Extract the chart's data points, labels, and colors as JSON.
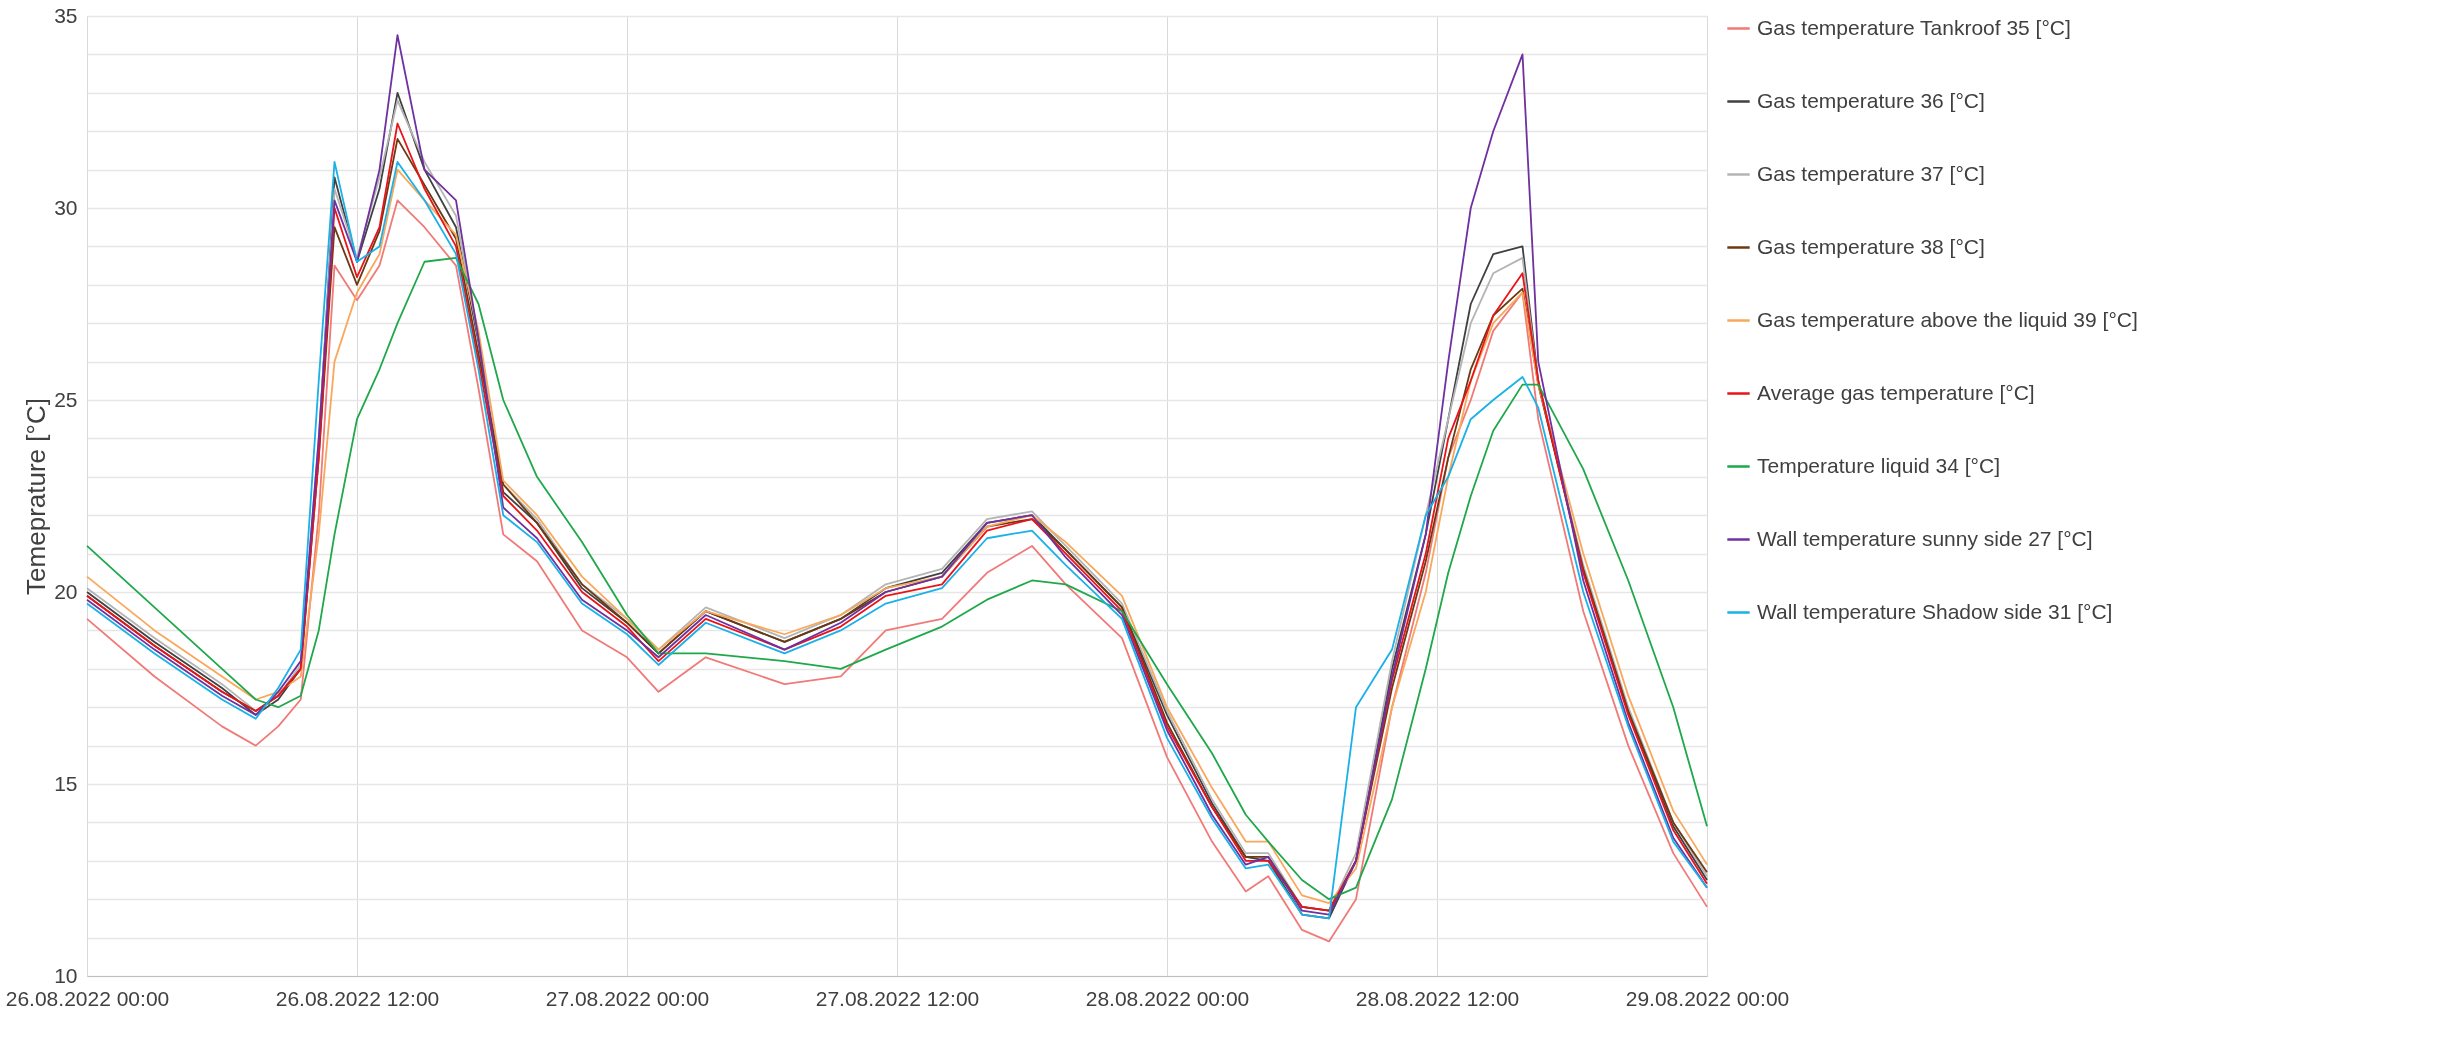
{
  "chart_data": {
    "type": "line",
    "ylabel": "Temeprature [°C]",
    "legend": "right",
    "grid": true,
    "line_style": "solid",
    "marker": "none",
    "x": [
      "2022-08-26T00:00",
      "2022-08-26T03:00",
      "2022-08-26T06:00",
      "2022-08-26T07:30",
      "2022-08-26T08:30",
      "2022-08-26T09:30",
      "2022-08-26T10:18",
      "2022-08-26T11:00",
      "2022-08-26T12:00",
      "2022-08-26T13:00",
      "2022-08-26T13:48",
      "2022-08-26T15:00",
      "2022-08-26T16:24",
      "2022-08-26T17:24",
      "2022-08-26T18:30",
      "2022-08-26T20:00",
      "2022-08-26T22:00",
      "2022-08-27T00:00",
      "2022-08-27T01:24",
      "2022-08-27T03:30",
      "2022-08-27T07:00",
      "2022-08-27T09:30",
      "2022-08-27T11:30",
      "2022-08-27T14:00",
      "2022-08-27T16:00",
      "2022-08-27T18:00",
      "2022-08-27T19:30",
      "2022-08-27T22:00",
      "2022-08-28T00:00",
      "2022-08-28T02:00",
      "2022-08-28T03:30",
      "2022-08-28T04:30",
      "2022-08-28T06:00",
      "2022-08-28T07:12",
      "2022-08-28T08:24",
      "2022-08-28T10:00",
      "2022-08-28T11:30",
      "2022-08-28T12:30",
      "2022-08-28T13:30",
      "2022-08-28T14:30",
      "2022-08-28T15:48",
      "2022-08-28T16:30",
      "2022-08-28T18:30",
      "2022-08-28T20:30",
      "2022-08-28T22:30",
      "2022-08-29T00:00"
    ],
    "xlim": [
      "2022-08-26T00:00",
      "2022-08-29T00:00"
    ],
    "xticks": [
      {
        "value": "2022-08-26T00:00",
        "label": "26.08.2022 00:00"
      },
      {
        "value": "2022-08-26T12:00",
        "label": "26.08.2022 12:00"
      },
      {
        "value": "2022-08-27T00:00",
        "label": "27.08.2022 00:00"
      },
      {
        "value": "2022-08-27T12:00",
        "label": "27.08.2022 12:00"
      },
      {
        "value": "2022-08-28T00:00",
        "label": "28.08.2022 00:00"
      },
      {
        "value": "2022-08-28T12:00",
        "label": "28.08.2022 12:00"
      },
      {
        "value": "2022-08-29T00:00",
        "label": "29.08.2022 00:00"
      }
    ],
    "ylim": [
      10,
      35
    ],
    "yticks": [
      10,
      {
        "value": 11,
        "label": null
      },
      {
        "value": 12,
        "label": null
      },
      {
        "value": 13,
        "label": null
      },
      {
        "value": 14,
        "label": null
      },
      15,
      {
        "value": 16,
        "label": null
      },
      {
        "value": 17,
        "label": null
      },
      {
        "value": 18,
        "label": null
      },
      {
        "value": 19,
        "label": null
      },
      20,
      {
        "value": 21,
        "label": null
      },
      {
        "value": 22,
        "label": null
      },
      {
        "value": 23,
        "label": null
      },
      {
        "value": 24,
        "label": null
      },
      25,
      {
        "value": 26,
        "label": null
      },
      {
        "value": 27,
        "label": null
      },
      {
        "value": 28,
        "label": null
      },
      {
        "value": 29,
        "label": null
      },
      30,
      {
        "value": 31,
        "label": null
      },
      {
        "value": 32,
        "label": null
      },
      {
        "value": 33,
        "label": null
      },
      {
        "value": 34,
        "label": null
      },
      35
    ],
    "series": [
      {
        "name": "Gas temperature Tankroof 35 [°C]",
        "color": "#f07a78",
        "values": [
          19.3,
          17.8,
          16.5,
          16.0,
          16.5,
          17.2,
          22.0,
          28.5,
          27.6,
          28.5,
          30.2,
          29.5,
          28.5,
          25.3,
          21.5,
          20.8,
          19.0,
          18.3,
          17.4,
          18.3,
          17.6,
          17.8,
          19.0,
          19.3,
          20.5,
          21.2,
          20.2,
          18.8,
          15.7,
          13.5,
          12.2,
          12.6,
          11.2,
          10.9,
          12.0,
          17.0,
          20.5,
          23.5,
          25.0,
          26.8,
          27.8,
          24.5,
          19.5,
          16.0,
          13.2,
          11.8
        ]
      },
      {
        "name": "Gas temperature 36 [°C]",
        "color": "#404040",
        "values": [
          20.0,
          18.7,
          17.5,
          16.8,
          17.2,
          18.0,
          23.8,
          30.8,
          28.6,
          30.5,
          33.0,
          31.0,
          29.5,
          26.5,
          22.6,
          21.8,
          20.1,
          19.2,
          18.4,
          19.5,
          18.7,
          19.3,
          20.1,
          20.5,
          21.8,
          22.0,
          21.1,
          19.6,
          16.8,
          14.5,
          13.1,
          13.0,
          11.6,
          11.5,
          13.0,
          18.0,
          21.5,
          24.5,
          27.5,
          28.8,
          29.0,
          25.5,
          20.6,
          16.9,
          13.9,
          12.5
        ]
      },
      {
        "name": "Gas temperature 37 [°C]",
        "color": "#b4b4b4",
        "values": [
          20.1,
          18.8,
          17.6,
          16.9,
          17.3,
          18.1,
          24.0,
          30.5,
          28.7,
          30.8,
          32.8,
          31.2,
          29.8,
          26.6,
          22.8,
          21.9,
          20.2,
          19.3,
          18.5,
          19.6,
          18.8,
          19.4,
          20.2,
          20.6,
          21.9,
          22.1,
          21.2,
          19.7,
          16.9,
          14.6,
          13.2,
          13.2,
          11.8,
          11.7,
          13.2,
          18.2,
          22.0,
          24.5,
          27.0,
          28.3,
          28.7,
          25.4,
          20.7,
          17.0,
          14.0,
          12.6
        ]
      },
      {
        "name": "Gas temperature 38 [°C]",
        "color": "#6b3a12",
        "values": [
          19.9,
          18.6,
          17.4,
          16.9,
          17.3,
          18.0,
          23.5,
          29.5,
          28.0,
          29.4,
          31.8,
          30.6,
          29.2,
          26.2,
          22.8,
          21.8,
          20.2,
          19.2,
          18.4,
          19.5,
          18.7,
          19.3,
          20.0,
          20.4,
          21.7,
          21.9,
          21.1,
          19.6,
          16.6,
          14.4,
          13.1,
          13.1,
          11.8,
          11.7,
          13.0,
          17.5,
          20.8,
          23.5,
          25.8,
          27.2,
          27.9,
          25.4,
          20.6,
          16.9,
          14.0,
          12.7
        ]
      },
      {
        "name": "Gas temperature above the liquid  39 [°C]",
        "color": "#f9a85b",
        "values": [
          20.4,
          19.0,
          17.8,
          17.2,
          17.4,
          17.8,
          21.5,
          26.0,
          27.8,
          28.8,
          31.0,
          30.2,
          29.3,
          26.8,
          22.9,
          22.0,
          20.4,
          19.3,
          18.5,
          19.5,
          18.9,
          19.4,
          20.1,
          20.4,
          21.7,
          22.0,
          21.3,
          19.9,
          17.0,
          14.9,
          13.5,
          13.5,
          12.1,
          11.9,
          12.8,
          17.0,
          20.0,
          23.0,
          25.5,
          27.0,
          27.8,
          25.4,
          21.0,
          17.3,
          14.3,
          12.9
        ]
      },
      {
        "name": "Average gas temperature [°C]",
        "color": "#e8141a",
        "values": [
          19.9,
          18.6,
          17.4,
          16.9,
          17.3,
          18.0,
          23.5,
          30.0,
          28.2,
          29.5,
          32.2,
          30.5,
          29.0,
          26.0,
          22.5,
          21.6,
          20.0,
          19.1,
          18.2,
          19.3,
          18.5,
          19.1,
          19.9,
          20.2,
          21.6,
          21.9,
          21.0,
          19.5,
          16.5,
          14.4,
          13.0,
          13.0,
          11.8,
          11.7,
          13.0,
          17.7,
          21.0,
          24.0,
          25.5,
          27.2,
          28.3,
          25.5,
          20.5,
          16.8,
          13.8,
          12.4
        ]
      },
      {
        "name": "Temperature liquid 34 [°C]",
        "color": "#1fa84a",
        "values": [
          21.2,
          19.6,
          18.0,
          17.2,
          17.0,
          17.3,
          19.0,
          21.5,
          24.5,
          25.8,
          27.0,
          28.6,
          28.7,
          27.5,
          25.0,
          23.0,
          21.3,
          19.4,
          18.4,
          18.4,
          18.2,
          18.0,
          18.5,
          19.1,
          19.8,
          20.3,
          20.2,
          19.5,
          17.6,
          15.8,
          14.2,
          13.5,
          12.5,
          12.0,
          12.3,
          14.6,
          18.0,
          20.5,
          22.5,
          24.2,
          25.4,
          25.4,
          23.2,
          20.3,
          17.0,
          13.9
        ]
      },
      {
        "name": "Wall temperature sunny side 27 [°C]",
        "color": "#7030a0",
        "values": [
          19.8,
          18.5,
          17.3,
          16.8,
          17.4,
          18.2,
          24.0,
          30.2,
          28.6,
          31.0,
          34.5,
          31.0,
          30.2,
          26.6,
          22.2,
          21.4,
          19.8,
          19.0,
          18.3,
          19.4,
          18.5,
          19.2,
          20.0,
          20.4,
          21.8,
          22.0,
          20.9,
          19.4,
          16.4,
          14.2,
          12.9,
          13.1,
          11.7,
          11.6,
          13.0,
          17.8,
          21.5,
          26.0,
          30.0,
          32.0,
          34.0,
          26.0,
          20.3,
          16.6,
          13.6,
          12.3
        ]
      },
      {
        "name": "Wall temperature Shadow side 31 [°C]",
        "color": "#1ab0e8",
        "values": [
          19.7,
          18.4,
          17.2,
          16.7,
          17.5,
          18.5,
          25.5,
          31.2,
          28.6,
          29.0,
          31.2,
          30.2,
          28.8,
          25.8,
          22.0,
          21.3,
          19.7,
          18.9,
          18.1,
          19.2,
          18.4,
          19.0,
          19.7,
          20.1,
          21.4,
          21.6,
          20.7,
          19.3,
          16.2,
          14.1,
          12.8,
          12.9,
          11.6,
          11.5,
          17.0,
          18.5,
          22.0,
          23.0,
          24.5,
          25.0,
          25.6,
          24.8,
          20.0,
          16.5,
          13.5,
          12.3
        ]
      }
    ]
  }
}
